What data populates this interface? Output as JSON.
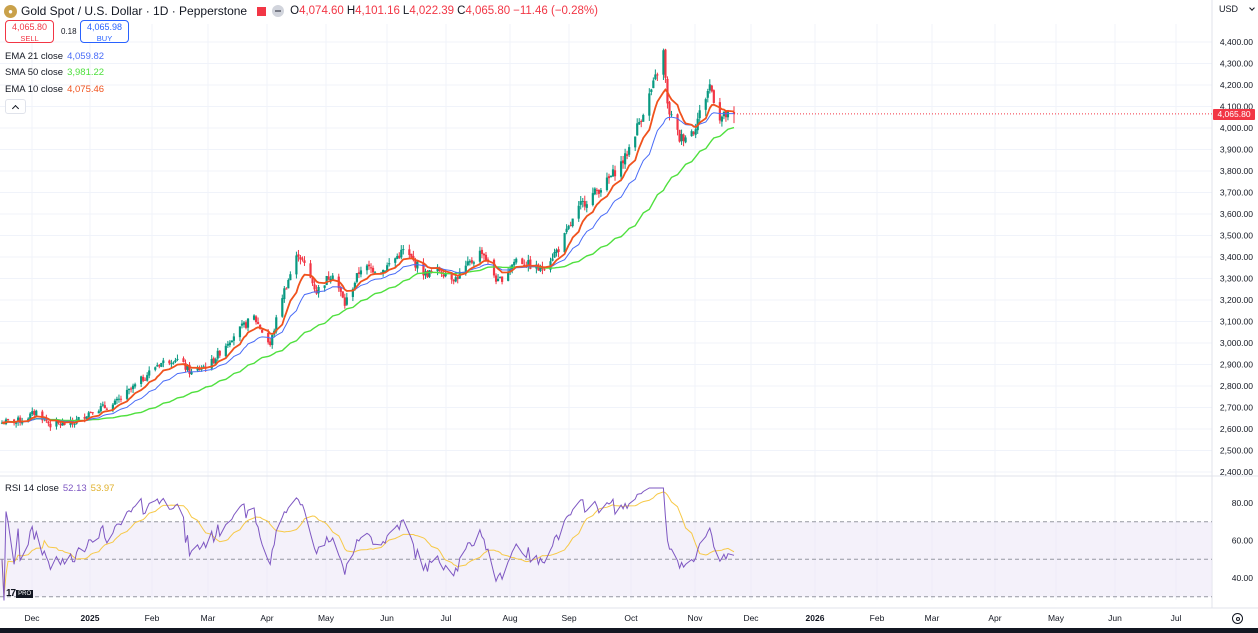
{
  "header": {
    "symbol_title": "Gold Spot / U.S. Dollar · 1D · Pepperstone",
    "open_label": "O",
    "open_value": "4,074.60",
    "high_label": "H",
    "high_value": "4,101.16",
    "low_label": "L",
    "low_value": "4,022.39",
    "close_label": "C",
    "close_value": "4,065.80",
    "change_value": "−11.46 (−0.28%)"
  },
  "trade": {
    "sell_price": "4,065.80",
    "sell_label": "SELL",
    "spread": "0.18",
    "buy_price": "4,065.98",
    "buy_label": "BUY"
  },
  "indicators": [
    {
      "name": "EMA 21 close",
      "value": "4,059.82",
      "color": "#4a6cf7"
    },
    {
      "name": "SMA 50 close",
      "value": "3,981.22",
      "color": "#4fe03e"
    },
    {
      "name": "EMA 10 close",
      "value": "4,075.46",
      "color": "#f0521d"
    }
  ],
  "rsi_legend": {
    "name": "RSI 14 close",
    "value": "52.13",
    "value_color": "#7e57c2",
    "ma_value": "53.97",
    "ma_color": "#f7c948"
  },
  "currency": "USD",
  "last_price_tag": "4,065.80",
  "logo_text": "17",
  "logo_badge": "PRO",
  "icons": {
    "symbol": "gold-coin-icon",
    "flag": "flag-icon",
    "toggle": "ohlc-toggle-icon",
    "collapse": "chevron-up-icon",
    "currency": "chevron-down-icon",
    "settings": "gear-icon"
  },
  "colors": {
    "up": "#089981",
    "down": "#f23645",
    "grid": "#f0f3fa",
    "rsi_line": "#7e57c2",
    "rsi_ma": "#f7c948",
    "rsi_band": "#ede7f6"
  },
  "chart_data": [
    {
      "type": "candlestick",
      "title": "Gold Spot / U.S. Dollar · 1D · Pepperstone",
      "y_axis": {
        "ticks": [
          "4,400.00",
          "4,300.00",
          "4,200.00",
          "4,100.00",
          "4,000.00",
          "3,900.00",
          "3,800.00",
          "3,700.00",
          "3,600.00",
          "3,500.00",
          "3,400.00",
          "3,300.00",
          "3,200.00",
          "3,100.00",
          "3,000.00",
          "2,900.00",
          "2,800.00",
          "2,700.00",
          "2,600.00",
          "2,500.00",
          "2,400.00"
        ],
        "ylim": [
          2400,
          4400
        ]
      },
      "x_axis": {
        "ticks": [
          "Dec",
          "2025",
          "Feb",
          "Mar",
          "Apr",
          "May",
          "Jun",
          "Jul",
          "Aug",
          "Sep",
          "Oct",
          "Nov",
          "Dec",
          "2026",
          "Feb",
          "Mar",
          "Apr",
          "May",
          "Jun",
          "Jul"
        ]
      },
      "grid": true,
      "price_anchors": [
        [
          "2024-11-26",
          2630
        ],
        [
          "2024-12-06",
          2640
        ],
        [
          "2024-12-13",
          2680
        ],
        [
          "2024-12-20",
          2620
        ],
        [
          "2024-12-31",
          2625
        ],
        [
          "2025-01-10",
          2690
        ],
        [
          "2025-01-20",
          2710
        ],
        [
          "2025-01-31",
          2800
        ],
        [
          "2025-02-11",
          2900
        ],
        [
          "2025-02-20",
          2930
        ],
        [
          "2025-02-28",
          2860
        ],
        [
          "2025-03-10",
          2910
        ],
        [
          "2025-03-20",
          3030
        ],
        [
          "2025-03-31",
          3120
        ],
        [
          "2025-04-08",
          2990
        ],
        [
          "2025-04-14",
          3220
        ],
        [
          "2025-04-22",
          3420
        ],
        [
          "2025-05-01",
          3240
        ],
        [
          "2025-05-09",
          3330
        ],
        [
          "2025-05-15",
          3180
        ],
        [
          "2025-05-23",
          3350
        ],
        [
          "2025-06-03",
          3340
        ],
        [
          "2025-06-13",
          3430
        ],
        [
          "2025-06-24",
          3320
        ],
        [
          "2025-07-01",
          3340
        ],
        [
          "2025-07-09",
          3300
        ],
        [
          "2025-07-22",
          3430
        ],
        [
          "2025-07-30",
          3280
        ],
        [
          "2025-08-08",
          3390
        ],
        [
          "2025-08-20",
          3340
        ],
        [
          "2025-08-29",
          3440
        ],
        [
          "2025-09-09",
          3640
        ],
        [
          "2025-09-22",
          3750
        ],
        [
          "2025-10-01",
          3860
        ],
        [
          "2025-10-08",
          4030
        ],
        [
          "2025-10-15",
          4200
        ],
        [
          "2025-10-20",
          4350
        ],
        [
          "2025-10-22",
          4100
        ],
        [
          "2025-10-28",
          3950
        ],
        [
          "2025-11-04",
          3990
        ],
        [
          "2025-11-12",
          4200
        ],
        [
          "2025-11-17",
          4050
        ],
        [
          "2025-11-24",
          4065.8
        ]
      ],
      "indicators": [
        {
          "name": "EMA 21 close",
          "last": 4059.82
        },
        {
          "name": "SMA 50 close",
          "last": 3981.22
        },
        {
          "name": "EMA 10 close",
          "last": 4075.46
        }
      ]
    },
    {
      "type": "line",
      "title": "RSI 14 close",
      "y_axis": {
        "ticks": [
          "80.00",
          "60.00",
          "40.00"
        ],
        "ylim": [
          30,
          86
        ],
        "bands": [
          70,
          50,
          30
        ]
      },
      "series": [
        {
          "name": "RSI 14 close",
          "last": 52.13
        },
        {
          "name": "RSI-based MA",
          "last": 53.97
        }
      ]
    }
  ]
}
